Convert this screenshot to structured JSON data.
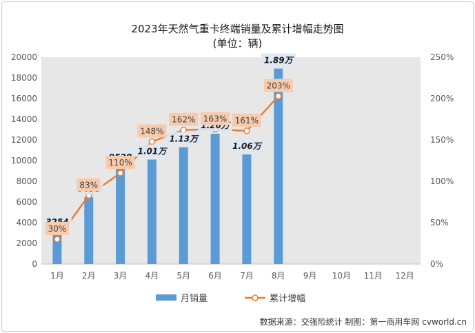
{
  "chart_data": {
    "type": "bar+line",
    "title": "2023年天然气重卡终端销量及累计增幅走势图",
    "subtitle": "(单位：辆)",
    "categories": [
      "1月",
      "2月",
      "3月",
      "4月",
      "5月",
      "6月",
      "7月",
      "8月",
      "9月",
      "10月",
      "11月",
      "12月"
    ],
    "series": [
      {
        "name": "月销量",
        "type": "bar",
        "axis": "left",
        "values": [
          3254,
          6458,
          9528,
          10100,
          11300,
          12600,
          10600,
          18900,
          null,
          null,
          null,
          null
        ],
        "labels": [
          "3254",
          "6458",
          "9528",
          "1.01万",
          "1.13万",
          "1.26万",
          "1.06万",
          "1.89万",
          "",
          "",
          "",
          ""
        ],
        "color": "#5b9bd5"
      },
      {
        "name": "累计增幅",
        "type": "line",
        "axis": "right",
        "values": [
          30,
          83,
          110,
          148,
          162,
          163,
          161,
          203,
          null,
          null,
          null,
          null
        ],
        "labels": [
          "30%",
          "83%",
          "110%",
          "148%",
          "162%",
          "163%",
          "161%",
          "203%",
          "",
          "",
          "",
          ""
        ],
        "color": "#ed7d31"
      }
    ],
    "y_left": {
      "min": 0,
      "max": 20000,
      "step": 2000,
      "ticks": [
        "0",
        "2000",
        "4000",
        "6000",
        "8000",
        "10000",
        "12000",
        "14000",
        "16000",
        "18000",
        "20000"
      ]
    },
    "y_right": {
      "min": 0,
      "max": 250,
      "step": 50,
      "ticks": [
        "0%",
        "50%",
        "100%",
        "150%",
        "200%",
        "250%"
      ]
    },
    "grid": false,
    "legend_position": "bottom",
    "plot_background": "#e7e7e7"
  },
  "footer": "数据来源：交强险统计  制图：第一商用车网 cvworld.cn"
}
